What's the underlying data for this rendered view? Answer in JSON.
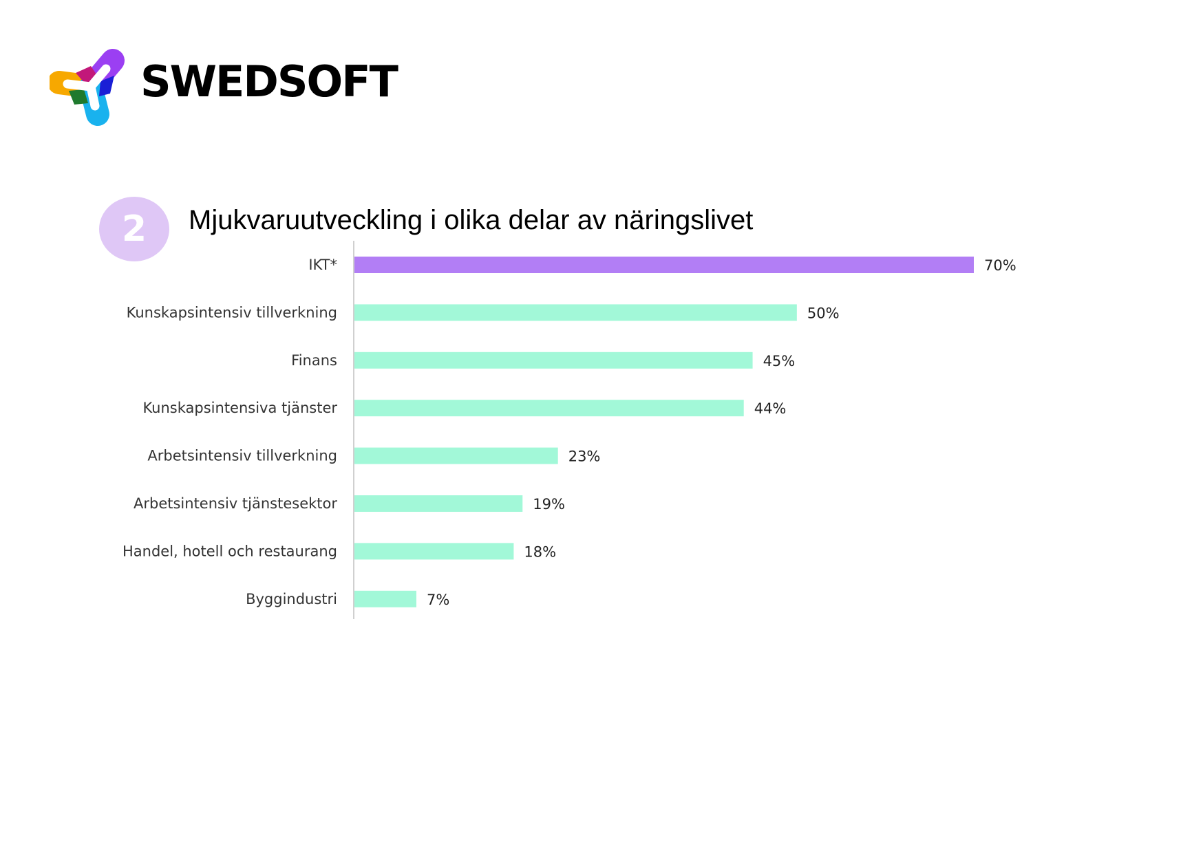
{
  "brand": {
    "name": "SWEDSOFT",
    "logo_icon": "swedsoft-logo-icon",
    "logo_colors": [
      "#f7a800",
      "#c2187a",
      "#9b3ff2",
      "#1f7a2e",
      "#1a1fd6",
      "#19b2ee"
    ]
  },
  "section": {
    "number": "2",
    "badge_color": "#dfc7f6"
  },
  "chart_data": {
    "type": "bar",
    "orientation": "horizontal",
    "title": "Mjukvaruutveckling i olika delar av näringslivet",
    "categories": [
      "IKT*",
      "Kunskapsintensiv tillverkning",
      "Finans",
      "Kunskapsintensiva tjänster",
      "Arbetsintensiv tillverkning",
      "Arbetsintensiv tjänstesektor",
      "Handel, hotell och restaurang",
      "Byggindustri"
    ],
    "values": [
      70,
      50,
      45,
      44,
      23,
      19,
      18,
      7
    ],
    "value_labels": [
      "70%",
      "50%",
      "45%",
      "44%",
      "23%",
      "19%",
      "18%",
      "7%"
    ],
    "unit": "%",
    "xlim": [
      0,
      70
    ],
    "grid": false,
    "legend": "none",
    "colors": {
      "highlight": "#b27ef5",
      "default": "#a2f8d8",
      "axis": "#d0d0d0"
    },
    "highlight_index": 0
  }
}
